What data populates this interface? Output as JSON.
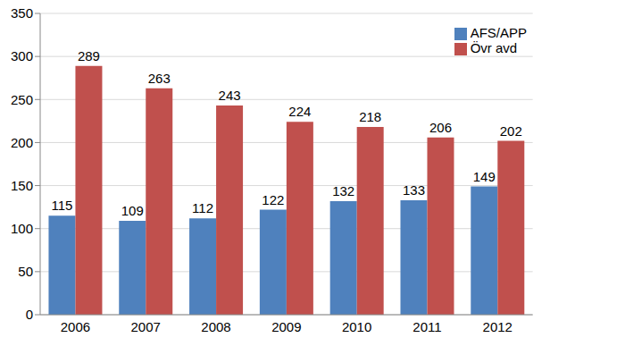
{
  "chart_data": {
    "type": "bar",
    "categories": [
      "2006",
      "2007",
      "2008",
      "2009",
      "2010",
      "2011",
      "2012"
    ],
    "series": [
      {
        "name": "AFS/APP",
        "color": "#4f81bd",
        "values": [
          115,
          109,
          112,
          122,
          132,
          133,
          149
        ]
      },
      {
        "name": "Övr avd",
        "color": "#c0504d",
        "values": [
          289,
          263,
          243,
          224,
          218,
          206,
          202
        ]
      }
    ],
    "ylim": [
      0,
      350
    ],
    "yticks": [
      0,
      50,
      100,
      150,
      200,
      250,
      300,
      350
    ],
    "grid": true,
    "legend": "upper right",
    "data_labels": true
  }
}
